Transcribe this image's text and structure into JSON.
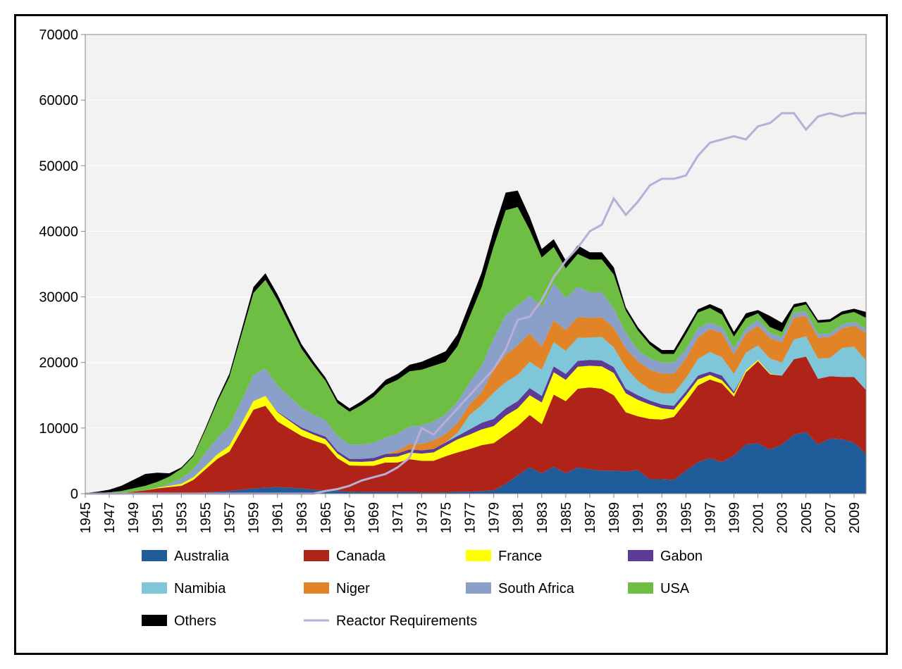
{
  "chart": {
    "type": "stacked-area-with-line",
    "background_color": "#ffffff",
    "plot_background_color": "#f2f2f2",
    "outer_border_color": "#000000",
    "outer_border_width": 3,
    "plot_border_color": "#888888",
    "plot_border_width": 1,
    "grid_color": "#ffffff",
    "grid_width": 1,
    "font_family": "Arial",
    "tick_fontsize": 20,
    "legend_fontsize": 20,
    "x": {
      "categories": [
        1945,
        1946,
        1947,
        1948,
        1949,
        1950,
        1951,
        1952,
        1953,
        1954,
        1955,
        1956,
        1957,
        1958,
        1959,
        1960,
        1961,
        1962,
        1963,
        1964,
        1965,
        1966,
        1967,
        1968,
        1969,
        1970,
        1971,
        1972,
        1973,
        1974,
        1975,
        1976,
        1977,
        1978,
        1979,
        1980,
        1981,
        1982,
        1983,
        1984,
        1985,
        1986,
        1987,
        1988,
        1989,
        1990,
        1991,
        1992,
        1993,
        1994,
        1995,
        1996,
        1997,
        1998,
        1999,
        2000,
        2001,
        2002,
        2003,
        2004,
        2005,
        2006,
        2007,
        2008,
        2009,
        2010
      ],
      "tick_labels": [
        "1945",
        "1947",
        "1949",
        "1951",
        "1953",
        "1955",
        "1957",
        "1959",
        "1961",
        "1963",
        "1965",
        "1967",
        "1969",
        "1971",
        "1973",
        "1975",
        "1977",
        "1979",
        "1981",
        "1983",
        "1985",
        "1987",
        "1989",
        "1991",
        "1993",
        "1995",
        "1997",
        "1999",
        "2001",
        "2003",
        "2005",
        "2007",
        "2009"
      ],
      "tick_every": 2,
      "label_rotation": -90
    },
    "y": {
      "min": 0,
      "max": 70000,
      "tick_step": 10000,
      "tick_labels": [
        "0",
        "10000",
        "20000",
        "30000",
        "40000",
        "50000",
        "60000",
        "70000"
      ]
    },
    "series": [
      {
        "name": "Australia",
        "type": "area",
        "color": "#1f5c99",
        "values": [
          0,
          0,
          0,
          0,
          0,
          0,
          0,
          0,
          0,
          100,
          200,
          300,
          400,
          600,
          800,
          900,
          1000,
          900,
          800,
          600,
          500,
          400,
          300,
          250,
          250,
          250,
          250,
          250,
          200,
          200,
          200,
          300,
          300,
          400,
          500,
          1500,
          2800,
          4000,
          3100,
          4100,
          3100,
          4000,
          3700,
          3500,
          3500,
          3400,
          3600,
          2200,
          2200,
          2100,
          3500,
          4800,
          5400,
          4800,
          5800,
          7500,
          7700,
          6700,
          7500,
          9000,
          9400,
          7500,
          8400,
          8300,
          7800,
          6000
        ]
      },
      {
        "name": "Canada",
        "type": "area",
        "color": "#b02318",
        "values": [
          0,
          0,
          0,
          100,
          300,
          500,
          800,
          1000,
          1200,
          2000,
          3500,
          5000,
          6000,
          9000,
          12000,
          12500,
          10000,
          9000,
          8000,
          7500,
          7000,
          5000,
          4000,
          4000,
          4000,
          4500,
          4500,
          5000,
          4800,
          4800,
          5500,
          6000,
          6500,
          7000,
          7200,
          7500,
          7500,
          8000,
          7500,
          11000,
          11000,
          12000,
          12500,
          12500,
          11500,
          9000,
          8200,
          9200,
          9100,
          9600,
          10500,
          11700,
          12000,
          12000,
          9000,
          11000,
          12500,
          11500,
          10500,
          11500,
          11500,
          10000,
          9500,
          9500,
          10000,
          9800
        ]
      },
      {
        "name": "France",
        "type": "area",
        "color": "#ffff00",
        "values": [
          0,
          0,
          0,
          0,
          0,
          0,
          100,
          200,
          300,
          400,
          500,
          700,
          900,
          1100,
          1300,
          1500,
          1400,
          1200,
          1000,
          900,
          800,
          700,
          600,
          600,
          700,
          800,
          900,
          1000,
          1100,
          1300,
          1600,
          2000,
          2200,
          2400,
          2600,
          2900,
          2700,
          3000,
          3300,
          3400,
          3250,
          3350,
          3300,
          3400,
          3400,
          2900,
          2500,
          2200,
          1700,
          1100,
          1000,
          900,
          700,
          500,
          450,
          300,
          200,
          100,
          0,
          0,
          0,
          0,
          0,
          0,
          0,
          0
        ]
      },
      {
        "name": "Gabon",
        "type": "area",
        "color": "#5c3a96",
        "values": [
          0,
          0,
          0,
          0,
          0,
          0,
          0,
          0,
          0,
          0,
          0,
          0,
          0,
          0,
          0,
          0,
          100,
          200,
          300,
          350,
          400,
          400,
          400,
          450,
          500,
          500,
          500,
          500,
          500,
          500,
          500,
          500,
          800,
          1000,
          1100,
          1100,
          1100,
          1100,
          1000,
          900,
          900,
          900,
          900,
          900,
          900,
          700,
          700,
          600,
          600,
          600,
          600,
          600,
          500,
          700,
          300,
          0,
          0,
          0,
          0,
          0,
          0,
          0,
          0,
          0,
          0,
          0
        ]
      },
      {
        "name": "Namibia",
        "type": "area",
        "color": "#7fc6d9",
        "values": [
          0,
          0,
          0,
          0,
          0,
          0,
          0,
          0,
          0,
          0,
          0,
          0,
          0,
          0,
          0,
          0,
          0,
          0,
          0,
          0,
          0,
          0,
          0,
          0,
          0,
          0,
          0,
          0,
          0,
          0,
          0,
          500,
          2200,
          2700,
          4000,
          4000,
          4000,
          4000,
          4000,
          3700,
          3500,
          3500,
          3400,
          3600,
          3000,
          3200,
          2200,
          1700,
          1700,
          1900,
          2000,
          2500,
          3000,
          2800,
          2700,
          2700,
          2200,
          2300,
          2000,
          3000,
          3100,
          3100,
          2800,
          4400,
          4600,
          4500
        ]
      },
      {
        "name": "Niger",
        "type": "area",
        "color": "#e08427",
        "values": [
          0,
          0,
          0,
          0,
          0,
          0,
          0,
          0,
          0,
          0,
          0,
          0,
          0,
          0,
          0,
          0,
          0,
          0,
          0,
          0,
          0,
          0,
          0,
          0,
          0,
          0,
          400,
          800,
          1000,
          1300,
          1300,
          1500,
          1600,
          2000,
          3500,
          4200,
          4500,
          4300,
          3500,
          3300,
          3200,
          3200,
          3000,
          3000,
          3000,
          2900,
          3000,
          3000,
          3000,
          3000,
          3000,
          3300,
          3500,
          3700,
          3000,
          2900,
          3000,
          3100,
          3100,
          3300,
          3100,
          3200,
          3200,
          3000,
          3200,
          4200
        ]
      },
      {
        "name": "South Africa",
        "type": "area",
        "color": "#8aa0c8",
        "values": [
          0,
          0,
          0,
          0,
          0,
          0,
          0,
          300,
          800,
          1200,
          2000,
          2500,
          3000,
          3500,
          4000,
          4200,
          4000,
          3500,
          3000,
          2700,
          2500,
          2300,
          2200,
          2200,
          2300,
          2500,
          2600,
          2700,
          2800,
          2900,
          3000,
          3200,
          3400,
          4000,
          4800,
          6000,
          6100,
          5800,
          6100,
          5700,
          4900,
          4600,
          3900,
          3800,
          2900,
          2400,
          1700,
          1700,
          1700,
          1700,
          1400,
          1400,
          1000,
          900,
          900,
          800,
          900,
          800,
          750,
          750,
          700,
          550,
          550,
          600,
          600,
          600
        ]
      },
      {
        "name": "USA",
        "type": "area",
        "color": "#6ebe44",
        "values": [
          0,
          100,
          200,
          300,
          500,
          700,
          900,
          1100,
          1500,
          2000,
          3500,
          5500,
          7500,
          10000,
          12500,
          13500,
          13000,
          11000,
          9000,
          7500,
          6000,
          5000,
          5000,
          6000,
          7000,
          8000,
          8200,
          8400,
          8500,
          8500,
          8000,
          8500,
          10000,
          12000,
          14000,
          16000,
          15000,
          10000,
          7500,
          5500,
          4500,
          5000,
          5000,
          5000,
          5200,
          3400,
          3000,
          2100,
          1300,
          1300,
          2300,
          2400,
          2200,
          1900,
          1800,
          1500,
          1000,
          900,
          800,
          850,
          1050,
          1700,
          1750,
          1500,
          1500,
          1700
        ]
      },
      {
        "name": "Others",
        "type": "area",
        "color": "#000000",
        "values": [
          100,
          200,
          400,
          800,
          1300,
          1800,
          1400,
          500,
          200,
          200,
          300,
          400,
          500,
          700,
          900,
          1000,
          900,
          800,
          700,
          600,
          500,
          500,
          500,
          600,
          700,
          800,
          900,
          1000,
          1200,
          1400,
          1600,
          1800,
          2000,
          2200,
          2500,
          2700,
          2500,
          2000,
          1300,
          1200,
          1200,
          1300,
          1100,
          1100,
          1100,
          500,
          500,
          500,
          600,
          600,
          700,
          500,
          600,
          800,
          700,
          800,
          500,
          1700,
          1400,
          500,
          400,
          400,
          400,
          500,
          500,
          900
        ]
      },
      {
        "name": "Reactor Requirements",
        "type": "line",
        "color": "#b8aed6",
        "line_width": 3,
        "values": [
          0,
          0,
          0,
          0,
          0,
          0,
          0,
          0,
          0,
          0,
          0,
          0,
          0,
          0,
          0,
          0,
          0,
          0,
          0,
          0,
          400,
          700,
          1200,
          2000,
          2500,
          3000,
          4000,
          5500,
          10000,
          9000,
          11000,
          13000,
          15000,
          17000,
          19000,
          22000,
          26500,
          27000,
          29500,
          33000,
          35500,
          37500,
          40000,
          41000,
          45000,
          42500,
          44500,
          47000,
          48000,
          48000,
          48500,
          51500,
          53500,
          54000,
          54500,
          54000,
          56000,
          56500,
          58000,
          58000,
          55500,
          57500,
          58000,
          57500,
          58000,
          58000
        ]
      }
    ],
    "legend": {
      "rows": [
        [
          "Australia",
          "Canada",
          "France",
          "Gabon"
        ],
        [
          "Namibia",
          "Niger",
          "South Africa",
          "USA"
        ],
        [
          "Others",
          "Reactor Requirements"
        ]
      ],
      "swatch_width": 36,
      "swatch_height": 16,
      "col_gap": 230,
      "row_gap": 46,
      "text_color": "#000000"
    }
  }
}
